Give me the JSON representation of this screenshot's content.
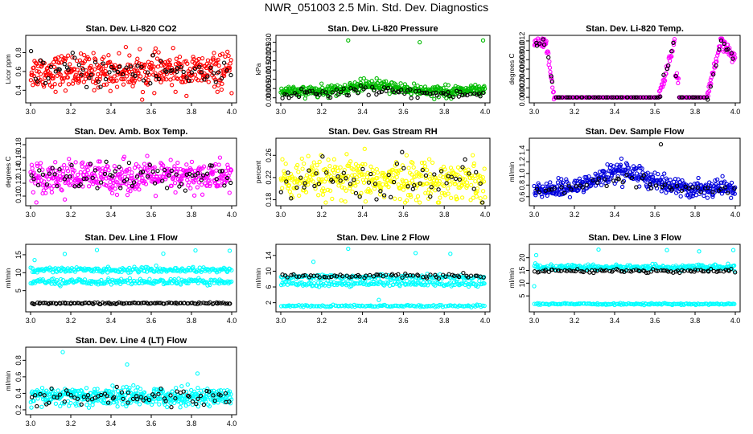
{
  "page": {
    "title": "NWR_051003  2.5 Min. Std. Dev. Diagnostics"
  },
  "colors": {
    "black_points": "#000000",
    "axis": "#000000"
  },
  "chart_data": [
    {
      "id": "co2",
      "type": "scatter",
      "title": "Stan. Dev. Li-820 CO2",
      "ylabel": "Licor ppm",
      "xlim": [
        3.0,
        4.0
      ],
      "ylim": [
        0.3,
        0.95
      ],
      "xticks": [
        "3.0",
        "3.2",
        "3.4",
        "3.6",
        "3.8",
        "4.0"
      ],
      "yticks": [
        0.4,
        0.6,
        0.8
      ],
      "ytick_labels": [
        "0.4",
        "0.6",
        "0.8"
      ],
      "series": [
        {
          "color": "#ff0000",
          "pattern": "scatter",
          "center": 0.6,
          "spread": 0.09,
          "n": 420
        },
        {
          "color": "#000000",
          "pattern": "scatter",
          "center": 0.6,
          "spread": 0.09,
          "n": 70
        }
      ]
    },
    {
      "id": "pressure",
      "type": "scatter",
      "title": "Stan. Dev. Li-820 Pressure",
      "ylabel": "kPa",
      "xlim": [
        3.0,
        4.0
      ],
      "ylim": [
        -0.001,
        0.032
      ],
      "xticks": [
        "3.0",
        "3.2",
        "3.4",
        "3.6",
        "3.8",
        "4.0"
      ],
      "yticks": [
        0.0,
        0.005,
        0.01,
        0.015,
        0.02,
        0.025,
        0.03
      ],
      "ytick_labels": [
        "0.000",
        "0.005",
        "0.010",
        "0.015",
        "0.020",
        "0.025",
        "0.030"
      ],
      "series": [
        {
          "color": "#00bb00",
          "pattern": "hump",
          "center": 0.0035,
          "amp": 0.003,
          "spread": 0.0015,
          "n": 420
        },
        {
          "color": "#000000",
          "pattern": "hump",
          "center": 0.002,
          "amp": 0.002,
          "spread": 0.0012,
          "n": 80
        }
      ],
      "outliers": [
        {
          "x": 3.33,
          "y": 0.031,
          "color": "#00bb00"
        },
        {
          "x": 3.68,
          "y": 0.03,
          "color": "#00bb00"
        },
        {
          "x": 3.99,
          "y": 0.031,
          "color": "#00bb00"
        }
      ]
    },
    {
      "id": "temp",
      "type": "scatter",
      "title": "Stan. Dev. Li-820 Temp.",
      "ylabel": "degrees C",
      "xlim": [
        3.0,
        4.0
      ],
      "ylim": [
        -0.0005,
        0.0125
      ],
      "xticks": [
        "3.0",
        "3.2",
        "3.4",
        "3.6",
        "3.8",
        "4.0"
      ],
      "yticks": [
        0.0,
        0.002,
        0.004,
        0.006,
        0.008,
        0.01,
        0.012
      ],
      "ytick_labels": [
        "0.000",
        "0.002",
        "0.004",
        "0.006",
        "0.008",
        "0.010",
        "0.012"
      ],
      "series": [
        {
          "color": "#ff00ff",
          "pattern": "temp",
          "n": 420
        },
        {
          "color": "#000000",
          "pattern": "temp",
          "n": 80
        }
      ]
    },
    {
      "id": "box",
      "type": "scatter",
      "title": "Stan. Dev. Amb. Box Temp.",
      "ylabel": "degrees C",
      "xlim": [
        3.0,
        4.0
      ],
      "ylim": [
        0.09,
        0.185
      ],
      "xticks": [
        "3.0",
        "3.2",
        "3.4",
        "3.6",
        "3.8",
        "4.0"
      ],
      "yticks": [
        0.1,
        0.12,
        0.14,
        0.16,
        0.18
      ],
      "ytick_labels": [
        "0.10",
        "0.12",
        "0.14",
        "0.16",
        "0.18"
      ],
      "series": [
        {
          "color": "#ff00ff",
          "pattern": "scatter",
          "center": 0.13,
          "spread": 0.012,
          "n": 420
        },
        {
          "color": "#000000",
          "pattern": "scatter",
          "center": 0.13,
          "spread": 0.012,
          "n": 70
        }
      ]
    },
    {
      "id": "rh",
      "type": "scatter",
      "title": "Stan. Dev. Gas Stream RH",
      "ylabel": "percent",
      "xlim": [
        3.0,
        4.0
      ],
      "ylim": [
        0.175,
        0.285
      ],
      "xticks": [
        "3.0",
        "3.2",
        "3.4",
        "3.6",
        "3.8",
        "4.0"
      ],
      "yticks": [
        0.18,
        0.22,
        0.26
      ],
      "ytick_labels": [
        "0.18",
        "0.22",
        "0.26"
      ],
      "series": [
        {
          "color": "#ffff00",
          "pattern": "scatter",
          "center": 0.215,
          "spread": 0.018,
          "n": 420
        },
        {
          "color": "#000000",
          "pattern": "scatter",
          "center": 0.215,
          "spread": 0.018,
          "n": 60
        }
      ]
    },
    {
      "id": "sample",
      "type": "scatter",
      "title": "Stan. Dev. Sample Flow",
      "ylabel": "ml/min",
      "xlim": [
        3.0,
        4.0
      ],
      "ylim": [
        0.5,
        1.55
      ],
      "xticks": [
        "3.0",
        "3.2",
        "3.4",
        "3.6",
        "3.8",
        "4.0"
      ],
      "yticks": [
        0.6,
        0.8,
        1.0,
        1.2,
        1.4
      ],
      "ytick_labels": [
        "0.6",
        "0.8",
        "1.0",
        "1.2",
        "1.4"
      ],
      "series": [
        {
          "color": "#0000dd",
          "pattern": "hump",
          "center": 0.72,
          "amp": 0.3,
          "spread": 0.07,
          "n": 420
        },
        {
          "color": "#000000",
          "pattern": "hump",
          "center": 0.72,
          "amp": 0.2,
          "spread": 0.05,
          "n": 50
        }
      ],
      "outliers": [
        {
          "x": 3.63,
          "y": 1.5,
          "color": "#000000"
        }
      ]
    },
    {
      "id": "line1",
      "type": "scatter",
      "title": "Stan. Dev. Line 1 Flow",
      "ylabel": "ml/min",
      "xlim": [
        3.0,
        4.0
      ],
      "ylim": [
        0.0,
        17.0
      ],
      "xticks": [
        "3.0",
        "3.2",
        "3.4",
        "3.6",
        "3.8",
        "4.0"
      ],
      "yticks": [
        5,
        10,
        15
      ],
      "ytick_labels": [
        "5",
        "10",
        "15"
      ],
      "series": [
        {
          "color": "#00ffff",
          "pattern": "band",
          "center": 10.8,
          "spread": 0.35,
          "n": 200
        },
        {
          "color": "#00ffff",
          "pattern": "band",
          "center": 7.5,
          "spread": 0.4,
          "n": 200
        },
        {
          "color": "#000000",
          "pattern": "band",
          "center": 1.5,
          "spread": 0.12,
          "n": 110
        }
      ],
      "outliers": [
        {
          "x": 3.02,
          "y": 13.5,
          "color": "#00ffff"
        },
        {
          "x": 3.17,
          "y": 15.2,
          "color": "#00ffff"
        },
        {
          "x": 3.33,
          "y": 16.3,
          "color": "#00ffff"
        },
        {
          "x": 3.66,
          "y": 15.3,
          "color": "#00ffff"
        },
        {
          "x": 3.82,
          "y": 16.2,
          "color": "#00ffff"
        },
        {
          "x": 3.99,
          "y": 16.1,
          "color": "#00ffff"
        }
      ]
    },
    {
      "id": "line2",
      "type": "scatter",
      "title": "Stan. Dev. Line 2 Flow",
      "ylabel": "ml/min",
      "xlim": [
        3.0,
        4.0
      ],
      "ylim": [
        0.5,
        16.0
      ],
      "xticks": [
        "3.0",
        "3.2",
        "3.4",
        "3.6",
        "3.8",
        "4.0"
      ],
      "yticks": [
        2,
        6,
        10,
        14
      ],
      "ytick_labels": [
        "2",
        "6",
        "10",
        "14"
      ],
      "series": [
        {
          "color": "#00ffff",
          "pattern": "band",
          "center": 8.5,
          "spread": 0.3,
          "n": 160
        },
        {
          "color": "#00ffff",
          "pattern": "band",
          "center": 6.8,
          "spread": 0.35,
          "n": 160
        },
        {
          "color": "#00ffff",
          "pattern": "band",
          "center": 1.2,
          "spread": 0.12,
          "n": 130
        },
        {
          "color": "#000000",
          "pattern": "band",
          "center": 8.8,
          "spread": 0.25,
          "n": 70
        }
      ],
      "outliers": [
        {
          "x": 3.16,
          "y": 12.4,
          "color": "#00ffff"
        },
        {
          "x": 3.33,
          "y": 15.7,
          "color": "#00ffff"
        },
        {
          "x": 3.48,
          "y": 2.7,
          "color": "#00ffff"
        },
        {
          "x": 3.66,
          "y": 14.6,
          "color": "#00ffff"
        },
        {
          "x": 3.83,
          "y": 14.4,
          "color": "#00ffff"
        }
      ]
    },
    {
      "id": "line3",
      "type": "scatter",
      "title": "Stan. Dev. Line 3 Flow",
      "ylabel": "ml/min",
      "xlim": [
        3.0,
        4.0
      ],
      "ylim": [
        0.0,
        24.0
      ],
      "xticks": [
        "3.0",
        "3.2",
        "3.4",
        "3.6",
        "3.8",
        "4.0"
      ],
      "yticks": [
        5,
        10,
        15,
        20
      ],
      "ytick_labels": [
        "5",
        "10",
        "15",
        "20"
      ],
      "series": [
        {
          "color": "#00ffff",
          "pattern": "band",
          "center": 16.2,
          "spread": 0.5,
          "n": 260
        },
        {
          "color": "#00ffff",
          "pattern": "band",
          "center": 1.8,
          "spread": 0.15,
          "n": 160
        },
        {
          "color": "#000000",
          "pattern": "band",
          "center": 14.8,
          "spread": 0.35,
          "n": 90
        }
      ],
      "outliers": [
        {
          "x": 3.01,
          "y": 21.0,
          "color": "#00ffff"
        },
        {
          "x": 3.0,
          "y": 8.8,
          "color": "#00ffff"
        },
        {
          "x": 3.32,
          "y": 23.2,
          "color": "#00ffff"
        },
        {
          "x": 3.66,
          "y": 23.0,
          "color": "#00ffff"
        },
        {
          "x": 3.82,
          "y": 22.5,
          "color": "#00ffff"
        },
        {
          "x": 3.99,
          "y": 23.0,
          "color": "#00ffff"
        }
      ]
    },
    {
      "id": "line4",
      "type": "scatter",
      "title": "Stan. Dev. Line 4 (LT) Flow",
      "ylabel": "ml/min",
      "xlim": [
        3.0,
        4.0
      ],
      "ylim": [
        0.18,
        0.92
      ],
      "xticks": [
        "3.0",
        "3.2",
        "3.4",
        "3.6",
        "3.8",
        "4.0"
      ],
      "yticks": [
        0.2,
        0.4,
        0.6,
        0.8
      ],
      "ytick_labels": [
        "0.2",
        "0.4",
        "0.6",
        "0.8"
      ],
      "series": [
        {
          "color": "#00ffff",
          "pattern": "scatter",
          "center": 0.36,
          "spread": 0.055,
          "n": 420
        },
        {
          "color": "#000000",
          "pattern": "scatter",
          "center": 0.36,
          "spread": 0.055,
          "n": 70
        }
      ],
      "outliers": [
        {
          "x": 3.16,
          "y": 0.9,
          "color": "#00ffff"
        },
        {
          "x": 3.48,
          "y": 0.75,
          "color": "#00ffff"
        },
        {
          "x": 3.83,
          "y": 0.64,
          "color": "#00ffff"
        }
      ]
    }
  ]
}
